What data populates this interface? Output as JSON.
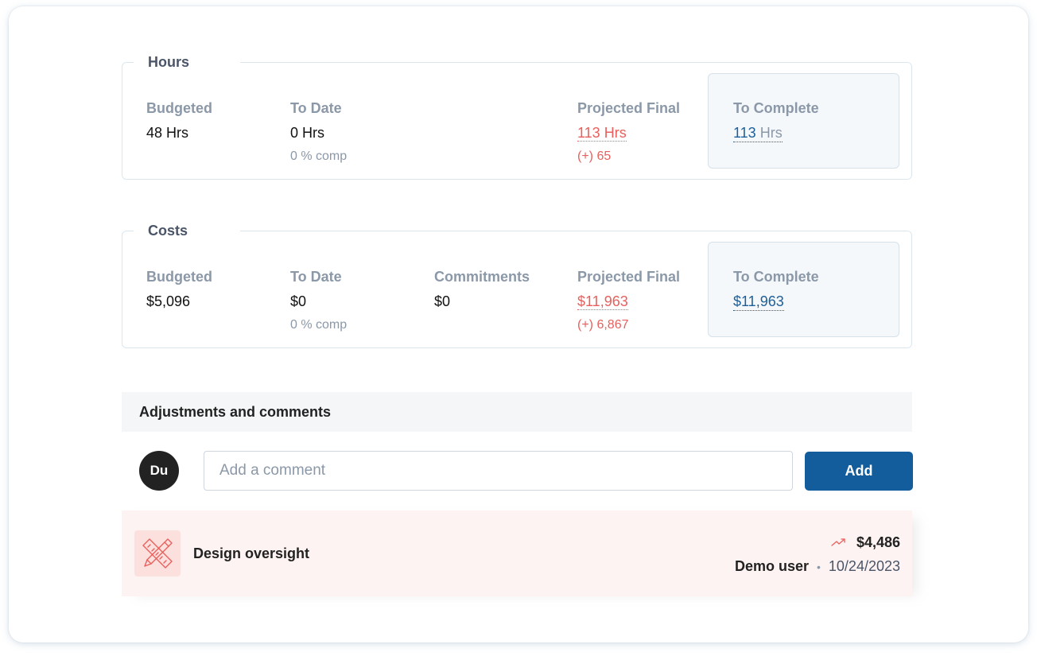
{
  "hours": {
    "title": "Hours",
    "budgeted": {
      "label": "Budgeted",
      "value": "48 Hrs"
    },
    "to_date": {
      "label": "To Date",
      "value": "0 Hrs",
      "sub": "0 % comp"
    },
    "projected_final": {
      "label": "Projected Final",
      "value": "113 Hrs",
      "delta": "(+) 65"
    },
    "to_complete": {
      "label": "To Complete",
      "value": "113",
      "unit": " Hrs"
    }
  },
  "costs": {
    "title": "Costs",
    "budgeted": {
      "label": "Budgeted",
      "value": "$5,096"
    },
    "to_date": {
      "label": "To Date",
      "value": "$0",
      "sub": "0 % comp"
    },
    "commitments": {
      "label": "Commitments",
      "value": "$0"
    },
    "projected_final": {
      "label": "Projected Final",
      "value": "$11,963",
      "delta": "(+) 6,867"
    },
    "to_complete": {
      "label": "To Complete",
      "value": "$11,963"
    }
  },
  "adjustments": {
    "title": "Adjustments and comments",
    "avatar_initials": "Du",
    "comment_placeholder": "Add a comment",
    "add_label": "Add",
    "entries": [
      {
        "icon": "pencil-ruler-icon",
        "title": "Design oversight",
        "trend_icon": "trend-up-icon",
        "amount": "$4,486",
        "user": "Demo user",
        "separator": "•",
        "date": "10/24/2023"
      }
    ]
  },
  "colors": {
    "accent": "#135d9c",
    "negative": "#e8605d",
    "muted": "#8b98a8"
  }
}
